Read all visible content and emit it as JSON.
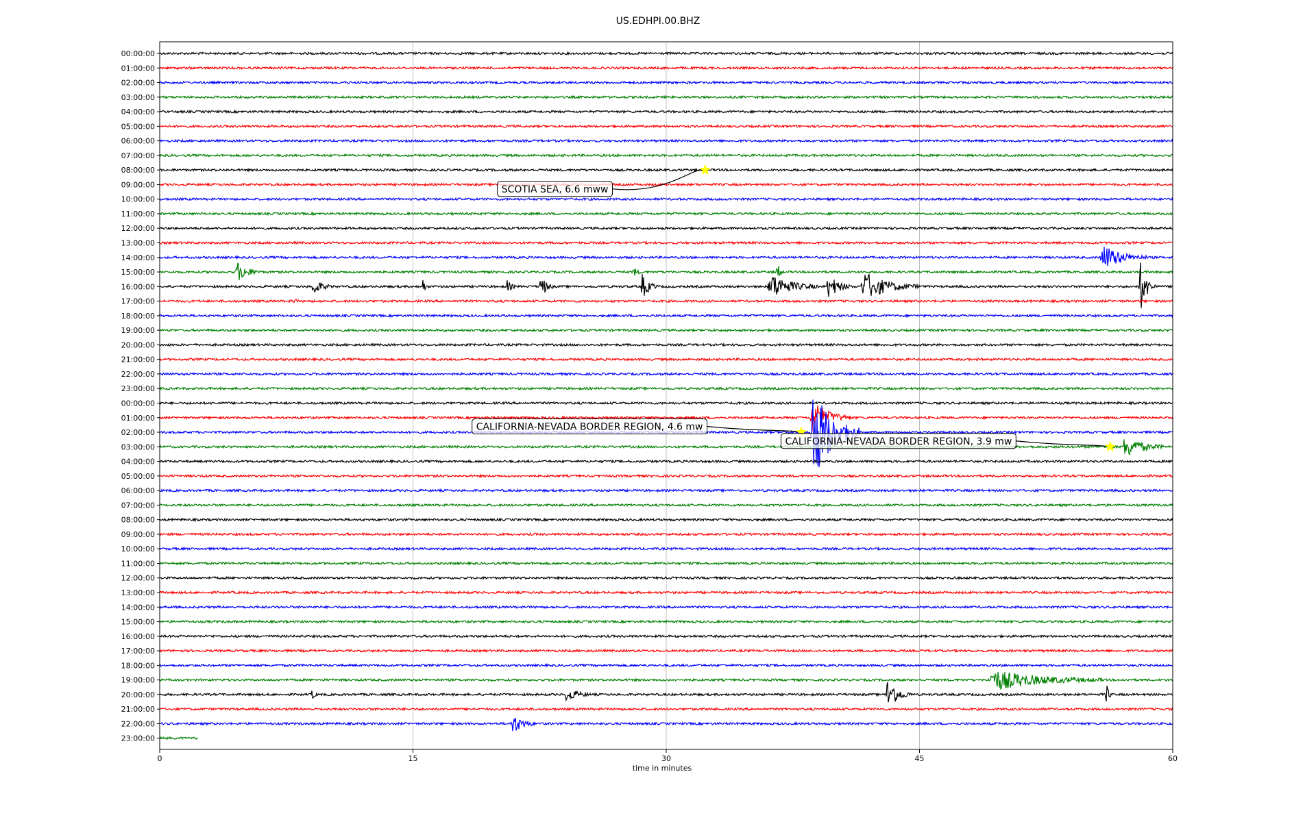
{
  "chart_data": {
    "type": "line",
    "title": "US.EDHPI.00.BHZ",
    "xlabel": "time in minutes",
    "xlim": [
      0,
      60
    ],
    "x_ticks": [
      0,
      15,
      30,
      45,
      60
    ],
    "x_tick_labels": [
      "0",
      "15",
      "30",
      "45",
      "60"
    ],
    "grid": "vertical",
    "series_colors": [
      "#000000",
      "#ff0000",
      "#0000ff",
      "#008000"
    ],
    "rows": [
      "00:00:00",
      "01:00:00",
      "02:00:00",
      "03:00:00",
      "04:00:00",
      "05:00:00",
      "06:00:00",
      "07:00:00",
      "08:00:00",
      "09:00:00",
      "10:00:00",
      "11:00:00",
      "12:00:00",
      "13:00:00",
      "14:00:00",
      "15:00:00",
      "16:00:00",
      "17:00:00",
      "18:00:00",
      "19:00:00",
      "20:00:00",
      "21:00:00",
      "22:00:00",
      "23:00:00",
      "00:00:00",
      "01:00:00",
      "02:00:00",
      "03:00:00",
      "04:00:00",
      "05:00:00",
      "06:00:00",
      "07:00:00",
      "08:00:00",
      "09:00:00",
      "10:00:00",
      "11:00:00",
      "12:00:00",
      "13:00:00",
      "14:00:00",
      "15:00:00",
      "16:00:00",
      "17:00:00",
      "18:00:00",
      "19:00:00",
      "20:00:00",
      "21:00:00",
      "22:00:00",
      "23:00:00"
    ],
    "last_row_end_minute": 2.3,
    "bursts": [
      {
        "row": 14,
        "minute": 55.7,
        "duration": 2.8,
        "amplitude": 0.9
      },
      {
        "row": 15,
        "minute": 4.5,
        "duration": 1.5,
        "amplitude": 0.7
      },
      {
        "row": 15,
        "minute": 28.0,
        "duration": 0.5,
        "amplitude": 0.4
      },
      {
        "row": 15,
        "minute": 36.5,
        "duration": 0.4,
        "amplitude": 1.0
      },
      {
        "row": 16,
        "minute": 9.0,
        "duration": 1.2,
        "amplitude": 0.6
      },
      {
        "row": 16,
        "minute": 15.5,
        "duration": 0.3,
        "amplitude": 1.2
      },
      {
        "row": 16,
        "minute": 20.5,
        "duration": 0.6,
        "amplitude": 0.5
      },
      {
        "row": 16,
        "minute": 22.5,
        "duration": 0.8,
        "amplitude": 0.9
      },
      {
        "row": 16,
        "minute": 28.5,
        "duration": 1.0,
        "amplitude": 0.9
      },
      {
        "row": 16,
        "minute": 36.0,
        "duration": 3.0,
        "amplitude": 0.9
      },
      {
        "row": 16,
        "minute": 39.5,
        "duration": 1.5,
        "amplitude": 0.9
      },
      {
        "row": 16,
        "minute": 41.5,
        "duration": 3.5,
        "amplitude": 1.0
      },
      {
        "row": 16,
        "minute": 58.0,
        "duration": 1.0,
        "amplitude": 1.8
      },
      {
        "row": 17,
        "minute": 7.9,
        "duration": 0.2,
        "amplitude": 0.5
      },
      {
        "row": 25,
        "minute": 38.5,
        "duration": 2.5,
        "amplitude": 1.2
      },
      {
        "row": 26,
        "minute": 38.5,
        "duration": 3.0,
        "amplitude": 3.5
      },
      {
        "row": 27,
        "minute": 57.0,
        "duration": 2.5,
        "amplitude": 0.8
      },
      {
        "row": 43,
        "minute": 49.0,
        "duration": 7.0,
        "amplitude": 0.7
      },
      {
        "row": 44,
        "minute": 9.0,
        "duration": 0.3,
        "amplitude": 0.5
      },
      {
        "row": 44,
        "minute": 24.0,
        "duration": 1.5,
        "amplitude": 0.5
      },
      {
        "row": 44,
        "minute": 43.0,
        "duration": 1.5,
        "amplitude": 1.2
      },
      {
        "row": 44,
        "minute": 56.0,
        "duration": 0.4,
        "amplitude": 1.0
      },
      {
        "row": 46,
        "minute": 20.8,
        "duration": 1.5,
        "amplitude": 0.7
      }
    ],
    "events": [
      {
        "label": "SCOTIA SEA, 6.6 mww",
        "row": 8,
        "minute": 32.3,
        "label_row": 9.3,
        "label_minute": 20.0
      },
      {
        "label": "CALIFORNIA-NEVADA BORDER REGION, 4.6 mw",
        "row": 26,
        "minute": 38.0,
        "label_row": 25.6,
        "label_minute": 18.5
      },
      {
        "label": "CALIFORNIA-NEVADA BORDER REGION, 3.9 mw",
        "row": 27,
        "minute": 56.3,
        "label_row": 26.6,
        "label_minute": 36.8
      }
    ]
  }
}
